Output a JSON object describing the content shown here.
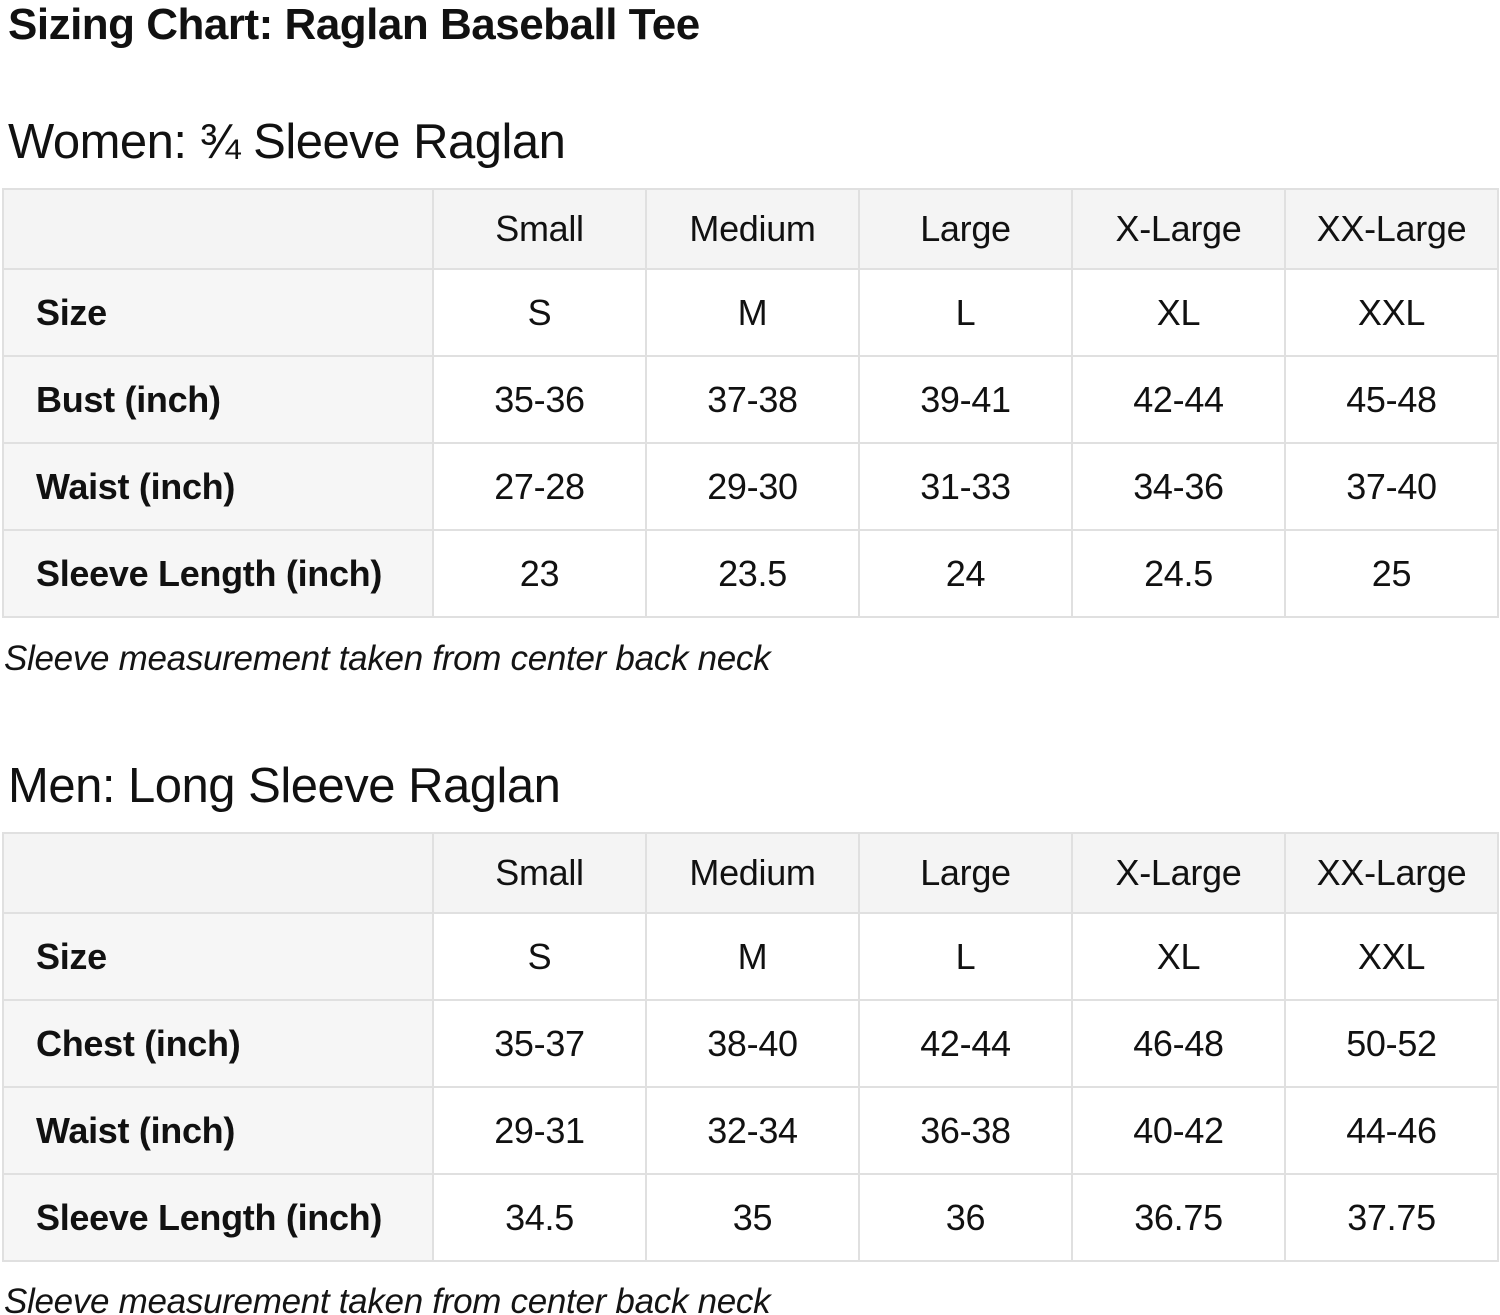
{
  "page_title": "Sizing Chart: Raglan Baseball Tee",
  "colors": {
    "background": "#ffffff",
    "table_border": "#e0e0e0",
    "header_row_bg": "#f4f4f4",
    "label_col_bg": "#f6f6f6",
    "text": "#111111"
  },
  "sections": [
    {
      "heading": "Women: ¾ Sleeve Raglan",
      "columns": [
        "",
        "Small",
        "Medium",
        "Large",
        "X-Large",
        "XX-Large"
      ],
      "rows": [
        {
          "label": "Size",
          "values": [
            "S",
            "M",
            "L",
            "XL",
            "XXL"
          ]
        },
        {
          "label": "Bust (inch)",
          "values": [
            "35-36",
            "37-38",
            "39-41",
            "42-44",
            "45-48"
          ]
        },
        {
          "label": "Waist (inch)",
          "values": [
            "27-28",
            "29-30",
            "31-33",
            "34-36",
            "37-40"
          ]
        },
        {
          "label": "Sleeve Length (inch)",
          "values": [
            "23",
            "23.5",
            "24",
            "24.5",
            "25"
          ]
        }
      ],
      "note": "Sleeve measurement taken from center back neck"
    },
    {
      "heading": "Men: Long Sleeve Raglan",
      "columns": [
        "",
        "Small",
        "Medium",
        "Large",
        "X-Large",
        "XX-Large"
      ],
      "rows": [
        {
          "label": "Size",
          "values": [
            "S",
            "M",
            "L",
            "XL",
            "XXL"
          ]
        },
        {
          "label": "Chest (inch)",
          "values": [
            "35-37",
            "38-40",
            "42-44",
            "46-48",
            "50-52"
          ]
        },
        {
          "label": "Waist (inch)",
          "values": [
            "29-31",
            "32-34",
            "36-38",
            "40-42",
            "44-46"
          ]
        },
        {
          "label": "Sleeve Length (inch)",
          "values": [
            "34.5",
            "35",
            "36",
            "36.75",
            "37.75"
          ]
        }
      ],
      "note": "Sleeve measurement taken from center back neck"
    }
  ]
}
